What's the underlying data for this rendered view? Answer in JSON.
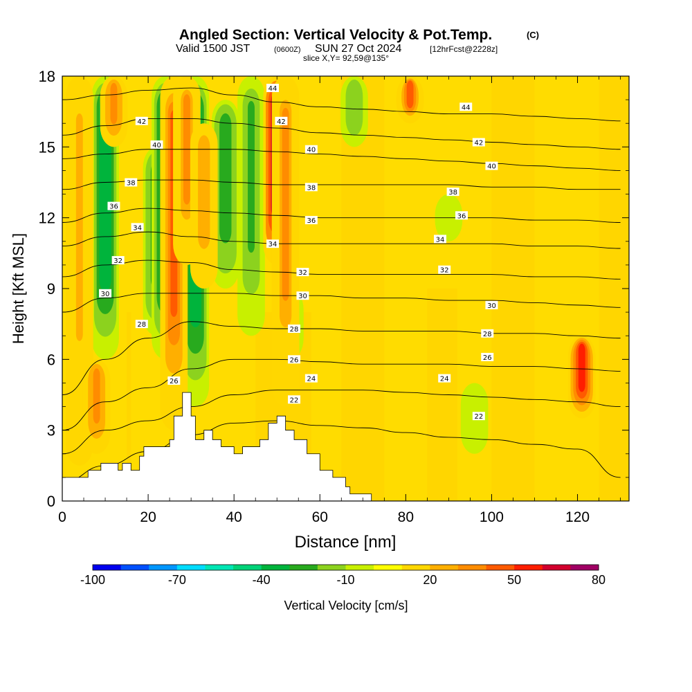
{
  "title": {
    "main": "Angled Section: Vertical Velocity & Pot.Temp.",
    "copyright": "(C)",
    "valid_prefix": "Valid 1500 JST",
    "valid_zulu": "(0600Z)",
    "valid_date": "SUN 27 Oct 2024",
    "forecast": "[12hrFcst@2228z]",
    "slice": "slice X,Y= 92,59@135°"
  },
  "chart_data": {
    "type": "heatmap",
    "xlabel": "Distance [nm]",
    "ylabel": "Height [Kft MSL]",
    "xlim": [
      0,
      132
    ],
    "ylim": [
      0,
      18
    ],
    "x_ticks": [
      0,
      20,
      40,
      60,
      80,
      100,
      120
    ],
    "y_ticks": [
      0,
      3,
      6,
      9,
      12,
      15,
      18
    ],
    "colorbar": {
      "label": "Vertical Velocity [cm/s]",
      "tick_labels": [
        "-100",
        "-70",
        "-40",
        "-10",
        "20",
        "50",
        "80"
      ],
      "levels": [
        -100,
        -90,
        -80,
        -70,
        -60,
        -50,
        -40,
        -30,
        -20,
        -10,
        0,
        10,
        20,
        30,
        40,
        50,
        60,
        70,
        80
      ],
      "colors": [
        "#0000ee",
        "#0050ff",
        "#0096ff",
        "#00dcff",
        "#00e6b4",
        "#00d278",
        "#00b43c",
        "#28aa1e",
        "#8cd21e",
        "#c8f000",
        "#ffff00",
        "#ffd700",
        "#ffaf00",
        "#ff8c00",
        "#ff5a00",
        "#ff1e00",
        "#d2002d",
        "#a00064",
        "#6e0096"
      ]
    },
    "updraft_columns": [
      {
        "x": 4,
        "z": [
          1.5,
          18
        ],
        "w": 20
      },
      {
        "x": 8,
        "z": [
          2,
          6
        ],
        "w": 35
      },
      {
        "x": 12,
        "z": [
          15,
          18
        ],
        "w": 35
      },
      {
        "x": 26,
        "z": [
          3,
          18
        ],
        "w": 40
      },
      {
        "x": 29,
        "z": [
          10,
          18
        ],
        "w": 30
      },
      {
        "x": 33,
        "z": [
          9,
          16
        ],
        "w": 25
      },
      {
        "x": 50,
        "z": [
          10,
          18
        ],
        "w": 75
      },
      {
        "x": 52,
        "z": [
          4,
          18
        ],
        "w": 30
      },
      {
        "x": 81,
        "z": [
          16,
          18
        ],
        "w": 40
      },
      {
        "x": 121,
        "z": [
          3.5,
          7
        ],
        "w": 50
      }
    ],
    "downdraft_columns": [
      {
        "x": 10,
        "z": [
          6,
          18
        ],
        "w": -40
      },
      {
        "x": 22,
        "z": [
          7,
          15
        ],
        "w": -30
      },
      {
        "x": 24,
        "z": [
          6,
          18
        ],
        "w": -35
      },
      {
        "x": 31,
        "z": [
          4,
          18
        ],
        "w": -40
      },
      {
        "x": 38,
        "z": [
          9,
          17
        ],
        "w": -30
      },
      {
        "x": 44,
        "z": [
          7,
          18
        ],
        "w": -25
      },
      {
        "x": 53,
        "z": [
          6,
          9
        ],
        "w": -20
      },
      {
        "x": 68,
        "z": [
          15,
          18
        ],
        "w": -20
      },
      {
        "x": 90,
        "z": [
          11,
          13
        ],
        "w": -10
      },
      {
        "x": 96,
        "z": [
          2,
          5
        ],
        "w": -10
      }
    ],
    "terrain": {
      "x": [
        0,
        6,
        6,
        9,
        9,
        13,
        13,
        14,
        14,
        16,
        16,
        18,
        18,
        19,
        19,
        25,
        25,
        26,
        26,
        28,
        28,
        30,
        30,
        31,
        31,
        33,
        33,
        35,
        35,
        37,
        37,
        40,
        40,
        42,
        42,
        46,
        46,
        48,
        48,
        50,
        50,
        52,
        52,
        54,
        54,
        57,
        57,
        60,
        60,
        63,
        63,
        66,
        66,
        67,
        67,
        72,
        72,
        132
      ],
      "z": [
        1,
        1,
        1.3,
        1.3,
        1.6,
        1.6,
        1.3,
        1.3,
        1.6,
        1.6,
        1.3,
        1.3,
        1.9,
        1.9,
        2.3,
        2.3,
        2.6,
        2.6,
        3.6,
        3.6,
        4.6,
        4.6,
        3.6,
        3.6,
        2.6,
        2.6,
        3.0,
        3.0,
        2.6,
        2.6,
        2.3,
        2.3,
        2.0,
        2.0,
        2.3,
        2.3,
        2.6,
        2.6,
        3.3,
        3.3,
        3.6,
        3.6,
        3.0,
        3.0,
        2.6,
        2.6,
        2.0,
        2.0,
        1.3,
        1.3,
        1.0,
        1.0,
        0.6,
        0.6,
        0.3,
        0.3,
        0,
        0
      ]
    },
    "theta_contours": [
      {
        "level": 22,
        "label": "22",
        "z": [
          0.8,
          1.5,
          2.1,
          2.8,
          3.3,
          3.4,
          3.2,
          3.1,
          2.9,
          2.7,
          2.6,
          2.4,
          2.2,
          1.0
        ]
      },
      {
        "level": 24,
        "label": "24",
        "z": [
          2.0,
          3.0,
          3.4,
          4.0,
          4.5,
          4.7,
          4.7,
          4.7,
          4.6,
          4.5,
          4.4,
          4.3,
          4.2,
          4.0
        ]
      },
      {
        "level": 26,
        "label": "26",
        "z": [
          3.0,
          4.2,
          4.8,
          5.6,
          6.0,
          6.0,
          5.9,
          5.8,
          5.8,
          5.8,
          5.7,
          5.7,
          5.6,
          5.5
        ]
      },
      {
        "level": 28,
        "label": "28",
        "z": [
          4.5,
          6.0,
          6.9,
          7.6,
          7.4,
          7.3,
          7.3,
          7.2,
          7.2,
          7.2,
          7.1,
          7.1,
          7.0,
          6.9
        ]
      },
      {
        "level": 30,
        "label": "30",
        "z": [
          8.0,
          8.6,
          8.8,
          8.8,
          8.8,
          8.7,
          8.7,
          8.6,
          8.6,
          8.5,
          8.5,
          8.4,
          8.3,
          8.2
        ]
      },
      {
        "level": 32,
        "label": "32",
        "z": [
          9.5,
          10.0,
          10.2,
          10.1,
          9.8,
          9.7,
          9.6,
          9.6,
          9.6,
          9.6,
          9.6,
          9.5,
          9.5,
          9.4
        ]
      },
      {
        "level": 34,
        "label": "34",
        "z": [
          10.8,
          11.2,
          11.4,
          11.2,
          11.0,
          10.9,
          10.9,
          10.9,
          10.9,
          10.9,
          10.9,
          10.8,
          10.8,
          10.7
        ]
      },
      {
        "level": 36,
        "label": "36",
        "z": [
          11.8,
          12.2,
          12.4,
          12.3,
          12.2,
          12.1,
          12.0,
          12.0,
          12.0,
          12.0,
          12.0,
          11.9,
          11.9,
          11.8
        ]
      },
      {
        "level": 38,
        "label": "38",
        "z": [
          13.2,
          13.5,
          13.6,
          13.6,
          13.5,
          13.4,
          13.4,
          13.4,
          13.4,
          13.4,
          13.3,
          13.3,
          13.2,
          13.2
        ]
      },
      {
        "level": 40,
        "label": "40",
        "z": [
          14.5,
          14.7,
          14.9,
          14.9,
          14.9,
          14.8,
          14.7,
          14.6,
          14.5,
          14.4,
          14.3,
          14.2,
          14.1,
          14.0
        ]
      },
      {
        "level": 42,
        "label": "42",
        "z": [
          15.5,
          15.9,
          16.2,
          16.2,
          16.0,
          15.8,
          15.6,
          15.5,
          15.4,
          15.3,
          15.2,
          15.1,
          15.0,
          14.9
        ]
      },
      {
        "level": 44,
        "label": "44",
        "z": [
          17.0,
          17.2,
          17.4,
          17.5,
          17.2,
          16.9,
          16.7,
          16.6,
          16.5,
          16.4,
          16.4,
          16.3,
          16.2,
          16.1
        ]
      }
    ],
    "contour_x": [
      0,
      10,
      20,
      30,
      40,
      50,
      60,
      70,
      80,
      90,
      100,
      110,
      120,
      130
    ],
    "contour_labels": [
      {
        "text": "44",
        "x": 49,
        "z": 17.5
      },
      {
        "text": "42",
        "x": 51,
        "z": 16.1
      },
      {
        "text": "42",
        "x": 18.5,
        "z": 16.1
      },
      {
        "text": "40",
        "x": 22,
        "z": 15.1
      },
      {
        "text": "38",
        "x": 16,
        "z": 13.5
      },
      {
        "text": "36",
        "x": 12,
        "z": 12.5
      },
      {
        "text": "34",
        "x": 17.5,
        "z": 11.6
      },
      {
        "text": "32",
        "x": 13,
        "z": 10.2
      },
      {
        "text": "30",
        "x": 10,
        "z": 8.8
      },
      {
        "text": "28",
        "x": 18.5,
        "z": 7.5
      },
      {
        "text": "26",
        "x": 26,
        "z": 5.1
      },
      {
        "text": "40",
        "x": 58,
        "z": 14.9
      },
      {
        "text": "38",
        "x": 58,
        "z": 13.3
      },
      {
        "text": "36",
        "x": 58,
        "z": 11.9
      },
      {
        "text": "34",
        "x": 49,
        "z": 10.9
      },
      {
        "text": "32",
        "x": 56,
        "z": 9.7
      },
      {
        "text": "30",
        "x": 56,
        "z": 8.7
      },
      {
        "text": "28",
        "x": 54,
        "z": 7.3
      },
      {
        "text": "26",
        "x": 54,
        "z": 6.0
      },
      {
        "text": "24",
        "x": 58,
        "z": 5.2
      },
      {
        "text": "22",
        "x": 54,
        "z": 4.3
      },
      {
        "text": "44",
        "x": 94,
        "z": 16.7
      },
      {
        "text": "42",
        "x": 97,
        "z": 15.2
      },
      {
        "text": "40",
        "x": 100,
        "z": 14.2
      },
      {
        "text": "38",
        "x": 91,
        "z": 13.1
      },
      {
        "text": "36",
        "x": 93,
        "z": 12.1
      },
      {
        "text": "34",
        "x": 88,
        "z": 11.1
      },
      {
        "text": "32",
        "x": 89,
        "z": 9.8
      },
      {
        "text": "30",
        "x": 100,
        "z": 8.3
      },
      {
        "text": "28",
        "x": 99,
        "z": 7.1
      },
      {
        "text": "26",
        "x": 99,
        "z": 6.1
      },
      {
        "text": "24",
        "x": 89,
        "z": 5.2
      },
      {
        "text": "22",
        "x": 97,
        "z": 3.6
      }
    ]
  }
}
